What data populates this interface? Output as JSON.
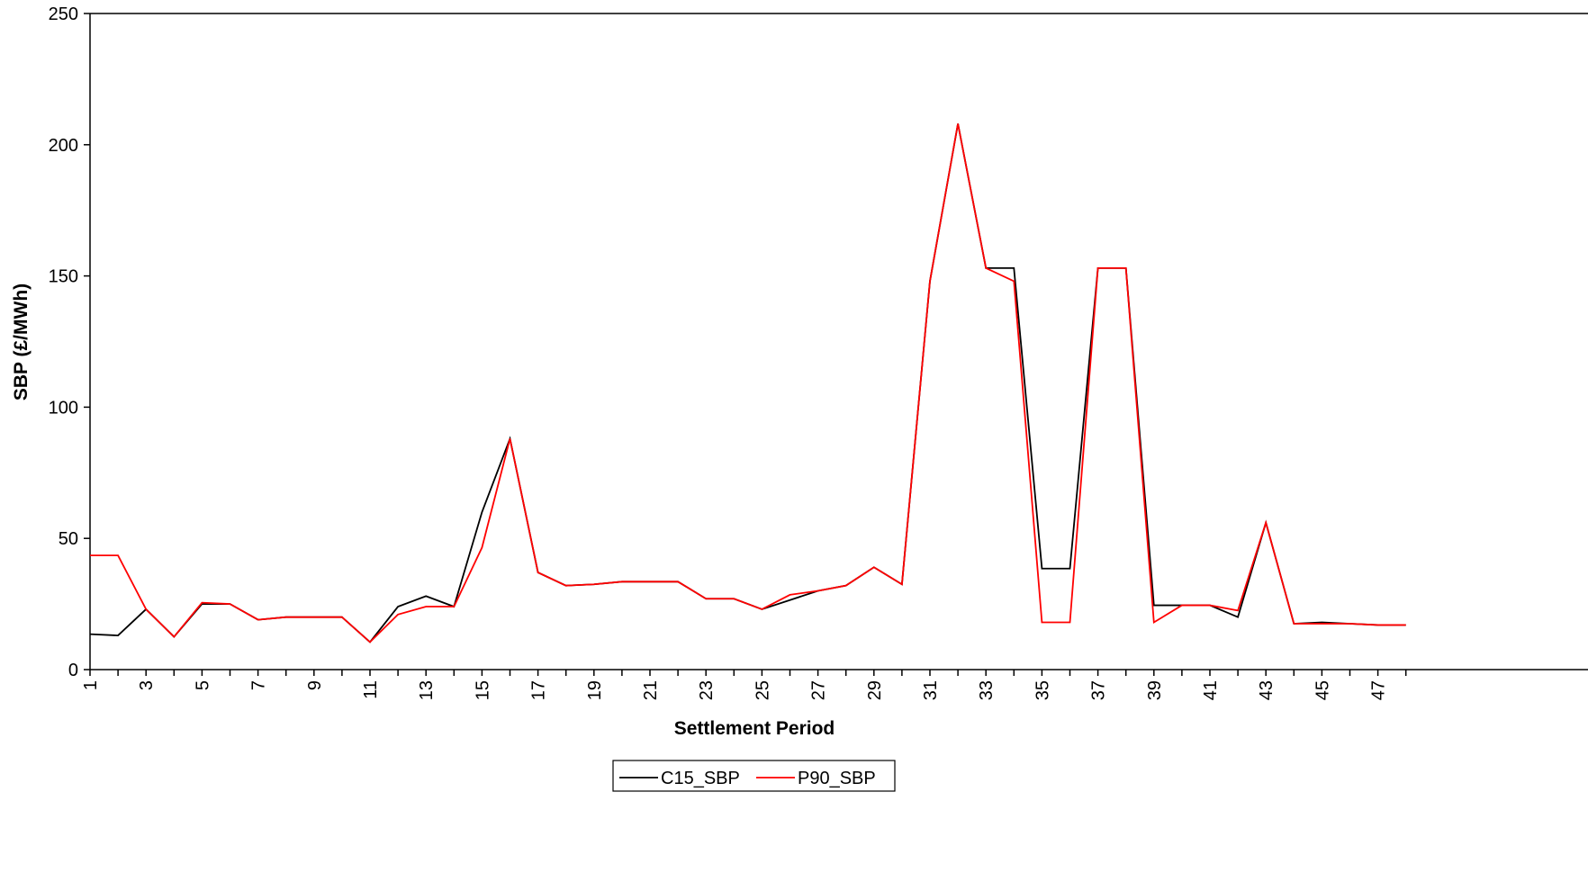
{
  "chart_data": {
    "type": "line",
    "xlabel": "Settlement Period",
    "ylabel": "SBP (£/MWh)",
    "ylim": [
      0,
      250
    ],
    "yticks": [
      0,
      50,
      100,
      150,
      200,
      250
    ],
    "x": [
      1,
      2,
      3,
      4,
      5,
      6,
      7,
      8,
      9,
      10,
      11,
      12,
      13,
      14,
      15,
      16,
      17,
      18,
      19,
      20,
      21,
      22,
      23,
      24,
      25,
      26,
      27,
      28,
      29,
      30,
      31,
      32,
      33,
      34,
      35,
      36,
      37,
      38,
      39,
      40,
      41,
      42,
      43,
      44,
      45,
      46,
      47,
      48
    ],
    "x_tick_labels": [
      "1",
      "3",
      "5",
      "7",
      "9",
      "11",
      "13",
      "15",
      "17",
      "19",
      "21",
      "23",
      "25",
      "27",
      "29",
      "31",
      "33",
      "35",
      "37",
      "39",
      "41",
      "43",
      "45",
      "47"
    ],
    "grid": false,
    "legend_position": "bottom-center",
    "series": [
      {
        "name": "C15_SBP",
        "color": "#000000",
        "values": [
          13.5,
          13,
          23,
          12.5,
          25,
          25,
          19,
          20,
          20,
          20,
          10.5,
          24,
          28,
          24,
          60,
          88,
          37,
          32,
          32.5,
          33.5,
          33.5,
          33.5,
          27,
          27,
          23,
          26.5,
          30,
          32,
          39,
          32.5,
          148,
          208,
          153,
          153,
          38.5,
          38.5,
          153,
          153,
          24.5,
          24.5,
          24.5,
          20,
          56,
          17.5,
          18,
          17.5,
          17,
          17
        ]
      },
      {
        "name": "P90_SBP",
        "color": "#ff0000",
        "values": [
          43.5,
          43.5,
          23,
          12.5,
          25.5,
          25,
          19,
          20,
          20,
          20,
          10.5,
          21,
          24,
          24,
          46.5,
          88,
          37,
          32,
          32.5,
          33.5,
          33.5,
          33.5,
          27,
          27,
          23,
          28.5,
          30,
          32,
          39,
          32.5,
          148,
          208,
          153,
          148,
          18,
          18,
          153,
          153,
          18,
          24.5,
          24.5,
          22.5,
          56,
          17.5,
          17.5,
          17.5,
          17,
          17
        ]
      }
    ]
  }
}
